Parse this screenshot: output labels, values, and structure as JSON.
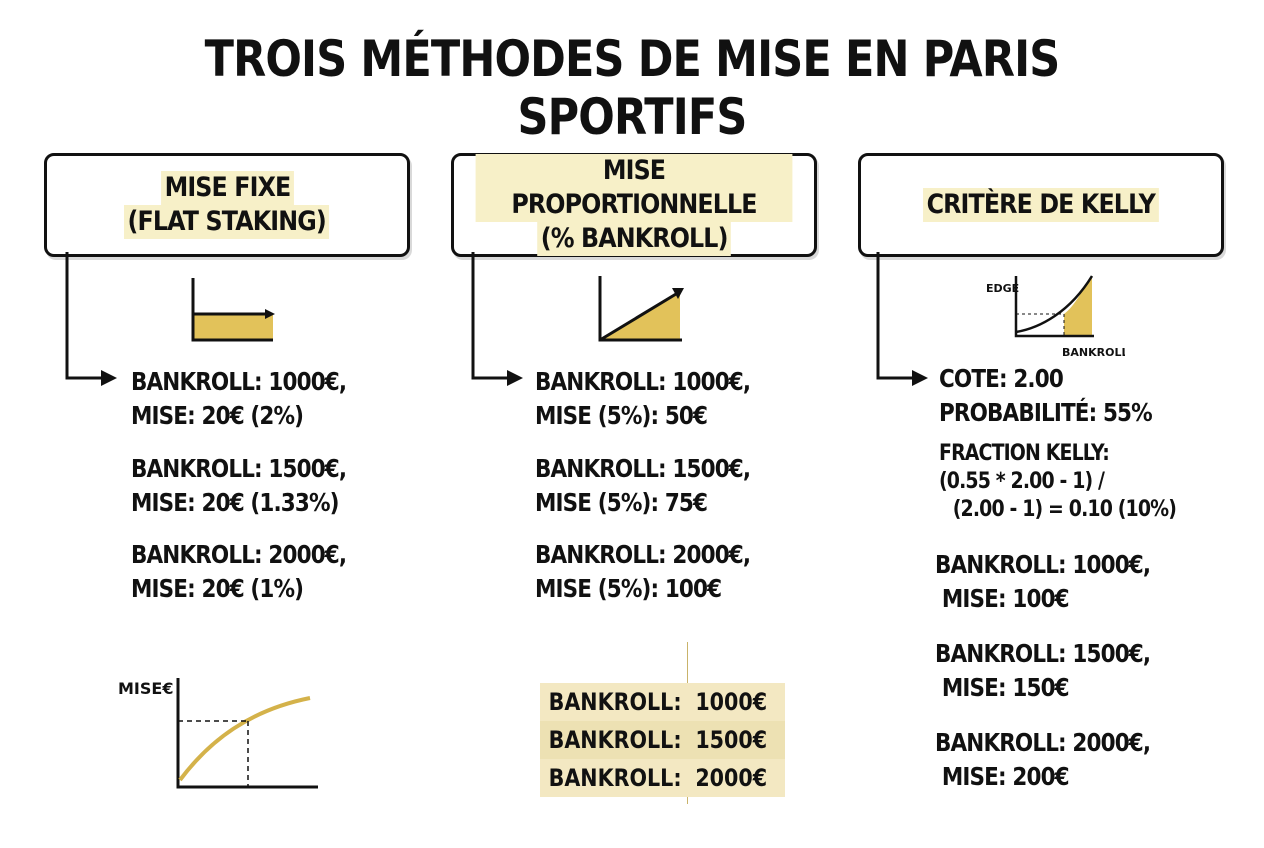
{
  "title": "TROIS MÉTHODES DE MISE EN PARIS SPORTIFS",
  "colors": {
    "accent": "#e2c25a",
    "ink": "#111111",
    "fill_light": "#f3e8c2"
  },
  "methods": [
    {
      "header_line1": "MISE FIXE",
      "header_line2": "(FLAT STAKING)",
      "icon": "flat-bar-chart-icon",
      "entries": [
        {
          "line1": "BANKROLL: 1000€,",
          "line2": "MISE: 20€ (2%)"
        },
        {
          "line1": "BANKROLL: 1500€,",
          "line2": "MISE: 20€ (1.33%)"
        },
        {
          "line1": "BANKROLL: 2000€,",
          "line2": "MISE: 20€ (1%)"
        }
      ],
      "chart_label": "MISE€"
    },
    {
      "header_line1": "MISE PROPORTIONNELLE",
      "header_line2": "(% BANKROLL)",
      "icon": "rising-triangle-chart-icon",
      "entries": [
        {
          "line1": "BANKROLL: 1000€,",
          "line2": "MISE (5%): 50€"
        },
        {
          "line1": "BANKROLL: 1500€,",
          "line2": "MISE (5%): 75€"
        },
        {
          "line1": "BANKROLL: 2000€,",
          "line2": "MISE (5%): 100€"
        }
      ],
      "table": [
        {
          "label": "BANKROLL:",
          "value": "1000€"
        },
        {
          "label": "BANKROLL:",
          "value": "1500€"
        },
        {
          "label": "BANKROLL:",
          "value": "2000€"
        }
      ]
    },
    {
      "header_line1": "CRITÈRE DE KELLY",
      "icon": "edge-curve-chart-icon",
      "chart_ylabel": "EDGE",
      "chart_xlabel": "BANKROLL",
      "cote": "COTE: 2.00",
      "probabilite": "PROBABILITÉ: 55%",
      "fraction_title": "FRACTION KELLY:",
      "fraction_line1": "(0.55 * 2.00 - 1) /",
      "fraction_line2": "(2.00 - 1) = 0.10 (10%)",
      "entries": [
        {
          "line1": "BANKROLL: 1000€,",
          "line2": "MISE: 100€"
        },
        {
          "line1": "BANKROLL: 1500€,",
          "line2": "MISE: 150€"
        },
        {
          "line1": "BANKROLL: 2000€,",
          "line2": "MISE: 200€"
        }
      ]
    }
  ]
}
